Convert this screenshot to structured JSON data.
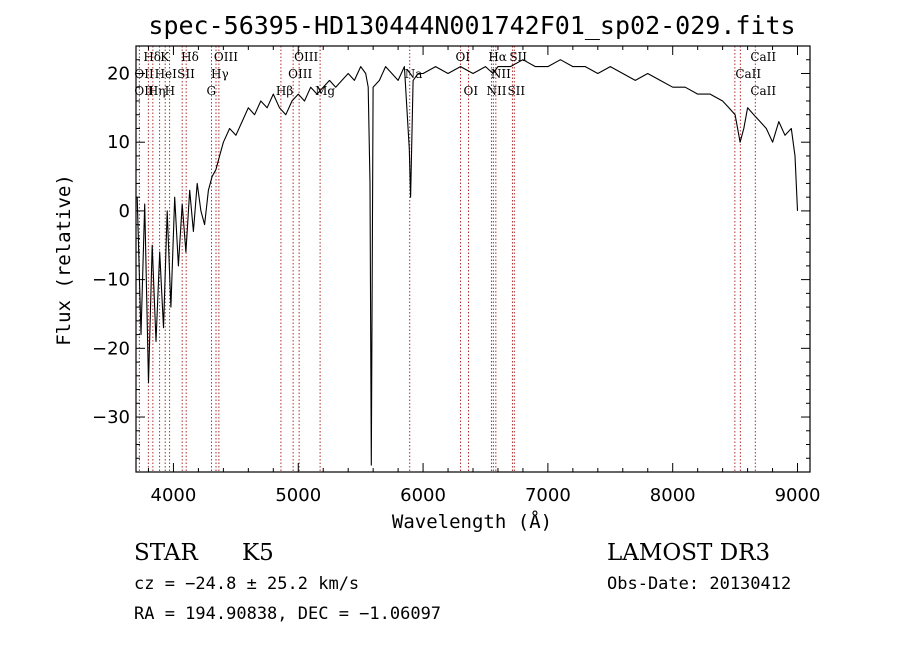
{
  "chart_data": {
    "type": "line",
    "title": "spec-56395-HD130444N001742F01_sp02-029.fits",
    "xlabel": "Wavelength (Å)",
    "ylabel": "Flux (relative)",
    "xlim": [
      3700,
      9100
    ],
    "ylim": [
      -38,
      24
    ],
    "x_ticks": [
      4000,
      5000,
      6000,
      7000,
      8000,
      9000
    ],
    "x_tick_labels": [
      "4000",
      "5000",
      "6000",
      "7000",
      "8000",
      "9000"
    ],
    "y_ticks": [
      -30,
      -20,
      -10,
      0,
      10,
      20
    ],
    "y_tick_labels": [
      "−30",
      "−20",
      "−10",
      "0",
      "10",
      "20"
    ],
    "grid": false,
    "series": [
      {
        "name": "flux",
        "color": "#000000",
        "x": [
          3710,
          3740,
          3770,
          3800,
          3830,
          3860,
          3890,
          3920,
          3950,
          3980,
          4010,
          4040,
          4070,
          4100,
          4130,
          4160,
          4190,
          4220,
          4250,
          4280,
          4310,
          4340,
          4370,
          4400,
          4450,
          4500,
          4550,
          4600,
          4650,
          4700,
          4750,
          4800,
          4850,
          4900,
          4950,
          5000,
          5050,
          5100,
          5150,
          5200,
          5250,
          5300,
          5350,
          5400,
          5450,
          5500,
          5540,
          5560,
          5575,
          5585,
          5600,
          5650,
          5700,
          5750,
          5800,
          5850,
          5890,
          5900,
          5920,
          5960,
          6000,
          6100,
          6200,
          6300,
          6400,
          6500,
          6560,
          6600,
          6700,
          6800,
          6900,
          7000,
          7100,
          7200,
          7300,
          7400,
          7500,
          7600,
          7700,
          7800,
          7900,
          8000,
          8100,
          8200,
          8300,
          8400,
          8450,
          8500,
          8540,
          8570,
          8600,
          8650,
          8700,
          8750,
          8800,
          8850,
          8900,
          8950,
          8980,
          9000
        ],
        "values": [
          2,
          -18,
          1,
          -25,
          -5,
          -19,
          -6,
          -17,
          0,
          -14,
          2,
          -8,
          1,
          -6,
          3,
          -3,
          4,
          0,
          -2,
          3,
          5,
          6,
          8,
          10,
          12,
          11,
          13,
          15,
          14,
          16,
          15,
          17,
          15,
          14,
          16,
          17,
          16,
          18,
          17,
          18,
          19,
          18,
          19,
          20,
          19,
          21,
          20,
          18,
          4,
          -37,
          18,
          19,
          21,
          20,
          19,
          21,
          9,
          2,
          19,
          20,
          20,
          21,
          20,
          21,
          20,
          21,
          20,
          21,
          21,
          22,
          21,
          21,
          22,
          21,
          21,
          20,
          21,
          20,
          19,
          20,
          19,
          18,
          18,
          17,
          17,
          16,
          15,
          14,
          10,
          12,
          15,
          14,
          13,
          12,
          10,
          13,
          11,
          12,
          8,
          0
        ]
      }
    ],
    "lines": [
      {
        "name": "Hδ",
        "wavelength": 3799
      },
      {
        "name": "OII",
        "wavelength": 3727
      },
      {
        "name": "HeI",
        "wavelength": 3889
      },
      {
        "name": "Hη",
        "wavelength": 3835
      },
      {
        "name": "K",
        "wavelength": 3934
      },
      {
        "name": "H",
        "wavelength": 3969
      },
      {
        "name": "SII",
        "wavelength": 4070
      },
      {
        "name": "Hδ",
        "wavelength": 4102
      },
      {
        "name": "OIII",
        "wavelength": 4364
      },
      {
        "name": "Hγ",
        "wavelength": 4341
      },
      {
        "name": "G",
        "wavelength": 4305
      },
      {
        "name": "Hβ",
        "wavelength": 4861
      },
      {
        "name": "OIII",
        "wavelength": 4959
      },
      {
        "name": "OIII",
        "wavelength": 5007
      },
      {
        "name": "Mg",
        "wavelength": 5175
      },
      {
        "name": "Na",
        "wavelength": 5893
      },
      {
        "name": "OI",
        "wavelength": 6300
      },
      {
        "name": "OI",
        "wavelength": 6364
      },
      {
        "name": "NII",
        "wavelength": 6548
      },
      {
        "name": "Hα",
        "wavelength": 6563
      },
      {
        "name": "NII",
        "wavelength": 6583
      },
      {
        "name": "SII",
        "wavelength": 6716
      },
      {
        "name": "SII",
        "wavelength": 6731
      },
      {
        "name": "CaII",
        "wavelength": 8498
      },
      {
        "name": "CaII",
        "wavelength": 8542
      },
      {
        "name": "CaII",
        "wavelength": 8662
      }
    ],
    "line_labels": [
      {
        "text": "Hδ",
        "wavelength": 3799,
        "row": 0
      },
      {
        "text": "K",
        "wavelength": 3934,
        "row": 0
      },
      {
        "text": "Hδ",
        "wavelength": 4102,
        "row": 0
      },
      {
        "text": "OIII",
        "wavelength": 4364,
        "row": 0
      },
      {
        "text": "OIII",
        "wavelength": 5007,
        "row": 0
      },
      {
        "text": "OI",
        "wavelength": 6300,
        "row": 0
      },
      {
        "text": "Hα",
        "wavelength": 6563,
        "row": 0
      },
      {
        "text": "SII",
        "wavelength": 6731,
        "row": 0
      },
      {
        "text": "CaII",
        "wavelength": 8662,
        "row": 0
      },
      {
        "text": "OII",
        "wavelength": 3727,
        "row": 1
      },
      {
        "text": "HeI",
        "wavelength": 3889,
        "row": 1
      },
      {
        "text": "SII",
        "wavelength": 4070,
        "row": 1
      },
      {
        "text": "Hγ",
        "wavelength": 4341,
        "row": 1
      },
      {
        "text": "OIII",
        "wavelength": 4959,
        "row": 1
      },
      {
        "text": "Na",
        "wavelength": 5893,
        "row": 1
      },
      {
        "text": "NII",
        "wavelength": 6583,
        "row": 1
      },
      {
        "text": "CaII",
        "wavelength": 8542,
        "row": 1
      },
      {
        "text": "OII",
        "wavelength": 3727,
        "row": 2
      },
      {
        "text": "Hη",
        "wavelength": 3835,
        "row": 2
      },
      {
        "text": "H",
        "wavelength": 3969,
        "row": 2
      },
      {
        "text": "G",
        "wavelength": 4305,
        "row": 2
      },
      {
        "text": "Hβ",
        "wavelength": 4861,
        "row": 2
      },
      {
        "text": "Mg",
        "wavelength": 5175,
        "row": 2
      },
      {
        "text": "OI",
        "wavelength": 6364,
        "row": 2
      },
      {
        "text": "NII",
        "wavelength": 6548,
        "row": 2
      },
      {
        "text": "SII",
        "wavelength": 6716,
        "row": 2
      },
      {
        "text": "CaII",
        "wavelength": 8662,
        "row": 2
      }
    ],
    "line_color": "#b03030"
  },
  "info": {
    "object_class": "STAR",
    "subclass": "K5",
    "survey": "LAMOST DR3",
    "redshift_text": "cz = −24.8 ± 25.2 km/s",
    "obs_date_text": "Obs-Date: 20130412",
    "coords_text": "RA = 194.90838, DEC =  −1.06097"
  }
}
